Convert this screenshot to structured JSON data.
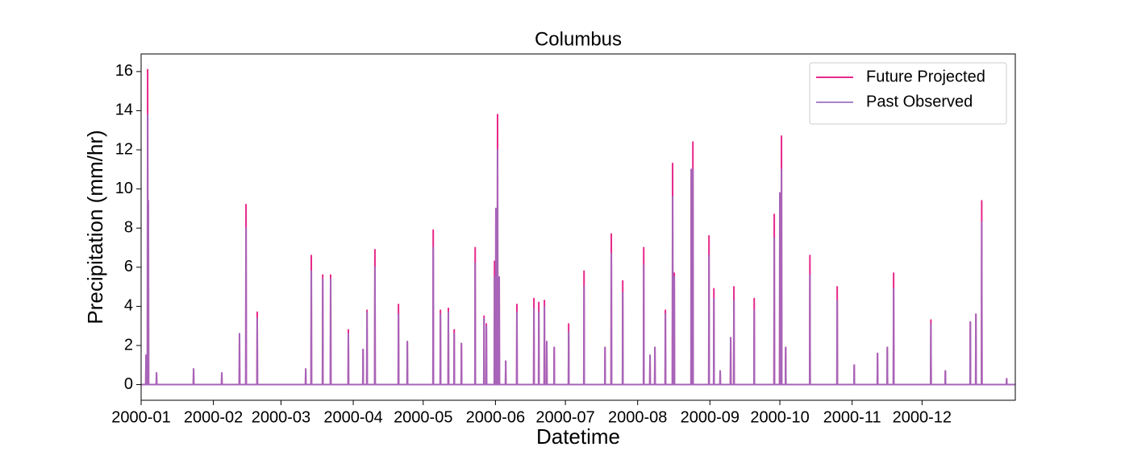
{
  "chart_data": {
    "type": "line",
    "title": "Columbus",
    "x_label": "Datetime",
    "y_label": "Precipitation (mm/hr)",
    "xlim": [
      0,
      375
    ],
    "ylim": [
      -0.8,
      16.9
    ],
    "xticks": [
      {
        "value": 0,
        "label": "2000-01"
      },
      {
        "value": 31,
        "label": "2000-02"
      },
      {
        "value": 60,
        "label": "2000-03"
      },
      {
        "value": 91,
        "label": "2000-04"
      },
      {
        "value": 121,
        "label": "2000-05"
      },
      {
        "value": 152,
        "label": "2000-06"
      },
      {
        "value": 182,
        "label": "2000-07"
      },
      {
        "value": 213,
        "label": "2000-08"
      },
      {
        "value": 244,
        "label": "2000-09"
      },
      {
        "value": 274,
        "label": "2000-10"
      },
      {
        "value": 305,
        "label": "2000-11"
      },
      {
        "value": 335,
        "label": "2000-12"
      }
    ],
    "yticks": [
      0,
      2,
      4,
      6,
      8,
      10,
      12,
      14,
      16
    ],
    "legend": "upper right",
    "x": [
      0,
      2.0,
      2.1,
      2.2,
      2.7,
      2.8,
      2.9,
      3.0,
      3.1,
      3.2,
      6.5,
      6.6,
      6.7,
      22.4,
      22.5,
      22.6,
      34.5,
      34.6,
      34.7,
      42.1,
      42.2,
      42.3,
      44.9,
      45,
      45.1,
      49.7,
      49.8,
      49.9,
      70.5,
      70.6,
      70.7,
      72.9,
      73,
      73.1,
      77.8,
      77.9,
      78,
      81.2,
      81.3,
      81.4,
      88.8,
      88.9,
      89,
      95.1,
      95.2,
      95.3,
      96.8,
      96.9,
      97,
      100.2,
      100.3,
      100.4,
      110.3,
      110.4,
      110.5,
      114.1,
      114.2,
      114.3,
      125.2,
      125.3,
      125.4,
      128.3,
      128.4,
      128.5,
      131.7,
      131.8,
      131.9,
      134.2,
      134.3,
      134.4,
      137.3,
      137.4,
      137.5,
      143.2,
      143.3,
      143.4,
      147,
      147.1,
      147.2,
      148,
      148.1,
      148.2,
      151.5,
      151.6,
      151.7,
      152.1,
      152.2,
      152.3,
      152.8,
      152.9,
      153,
      153.5,
      153.6,
      153.7,
      156.3,
      156.4,
      156.5,
      161.1,
      161.2,
      161.3,
      168.4,
      168.5,
      168.6,
      170.5,
      170.6,
      170.7,
      172.9,
      173,
      173.1,
      173.9,
      174,
      174.1,
      177.1,
      177.2,
      177.3,
      183.3,
      183.4,
      183.5,
      189.9,
      190,
      190.1,
      198.9,
      199,
      199.1,
      201.6,
      201.7,
      201.8,
      206.5,
      206.6,
      206.7,
      215.5,
      215.6,
      215.7,
      218.2,
      218.3,
      218.4,
      220.3,
      220.4,
      220.5,
      224.8,
      224.9,
      225,
      227.9,
      228,
      228.1,
      228.6,
      228.7,
      228.8,
      235.9,
      236,
      236.1,
      236.6,
      236.7,
      236.8,
      243.5,
      243.6,
      243.7,
      245.6,
      245.7,
      245.8,
      248.3,
      248.4,
      248.5,
      252.8,
      252.9,
      253,
      254.2,
      254.3,
      254.4,
      262.9,
      263,
      263.1,
      271.5,
      271.6,
      271.7,
      273.9,
      274,
      274.1,
      274.6,
      274.7,
      274.8,
      276.4,
      276.5,
      276.6,
      286.8,
      286.9,
      287,
      298.5,
      298.6,
      298.7,
      305.8,
      305.9,
      306,
      315.8,
      315.9,
      316,
      320,
      320.1,
      320.2,
      322.7,
      322.8,
      322.9,
      338.7,
      338.8,
      338.9,
      344.9,
      345,
      345.1,
      355.6,
      355.7,
      355.8,
      358,
      358.1,
      358.2,
      360.5,
      360.6,
      360.7,
      371.2,
      371.3,
      371.4,
      375
    ],
    "series": [
      {
        "name": "Future Projected",
        "color": "#e7298a",
        "values": [
          0,
          0,
          1.5,
          0,
          0,
          16.1,
          0,
          0,
          9.4,
          0,
          0,
          0.6,
          0,
          0,
          0.8,
          0,
          0,
          0.6,
          0,
          0,
          2.6,
          0,
          0,
          9.2,
          0,
          0,
          3.7,
          0,
          0,
          0.8,
          0,
          0,
          6.6,
          0,
          0,
          5.6,
          0,
          0,
          5.6,
          0,
          0,
          2.8,
          0,
          0,
          1.8,
          0,
          0,
          3.8,
          0,
          0,
          6.9,
          0,
          0,
          4.1,
          0,
          0,
          2.2,
          0,
          0,
          7.9,
          0,
          0,
          3.8,
          0,
          0,
          3.9,
          0,
          0,
          2.8,
          0,
          0,
          2.1,
          0,
          0,
          7.0,
          0,
          0,
          3.5,
          0,
          0,
          3.1,
          0,
          0,
          6.3,
          0,
          0,
          9.0,
          0,
          0,
          13.8,
          0,
          0,
          5.5,
          0,
          0,
          1.2,
          0,
          0,
          4.1,
          0,
          0,
          4.4,
          0,
          0,
          4.2,
          0,
          0,
          4.3,
          0,
          0,
          2.2,
          0,
          0,
          1.9,
          0,
          0,
          3.1,
          0,
          0,
          5.8,
          0,
          0,
          1.9,
          0,
          0,
          7.7,
          0,
          0,
          5.3,
          0,
          0,
          7.0,
          0,
          0,
          1.5,
          0,
          0,
          1.9,
          0,
          0,
          3.8,
          0,
          0,
          11.3,
          0,
          0,
          5.7,
          0,
          0,
          11.0,
          0,
          0,
          12.4,
          0,
          0,
          7.6,
          0,
          0,
          4.9,
          0,
          0,
          0.7,
          0,
          0,
          2.4,
          0,
          0,
          5.0,
          0,
          0,
          4.4,
          0,
          0,
          8.7,
          0,
          0,
          9.8,
          0,
          0,
          12.7,
          0,
          0,
          1.9,
          0,
          0,
          6.6,
          0,
          0,
          5.0,
          0,
          0,
          1.0,
          0,
          0,
          1.6,
          0,
          0,
          1.9,
          0,
          0,
          5.7,
          0,
          0,
          3.3,
          0,
          0,
          0.7,
          0,
          0,
          3.2,
          0,
          0,
          3.6,
          0,
          0,
          9.4,
          0,
          0,
          0.3,
          0,
          0
        ]
      },
      {
        "name": "Past Observed",
        "color": "#9b6fc0",
        "values": [
          0,
          0,
          1.5,
          0,
          0,
          13.8,
          0,
          0,
          9.4,
          0,
          0,
          0.6,
          0,
          0,
          0.8,
          0,
          0,
          0.6,
          0,
          0,
          2.6,
          0,
          0,
          8.0,
          0,
          0,
          3.4,
          0,
          0,
          0.8,
          0,
          0,
          5.8,
          0,
          0,
          5.4,
          0,
          0,
          5.4,
          0,
          0,
          2.6,
          0,
          0,
          1.8,
          0,
          0,
          3.7,
          0,
          0,
          6.0,
          0,
          0,
          3.6,
          0,
          0,
          2.2,
          0,
          0,
          7.0,
          0,
          0,
          3.6,
          0,
          0,
          3.7,
          0,
          0,
          2.6,
          0,
          0,
          2.1,
          0,
          0,
          6.2,
          0,
          0,
          3.4,
          0,
          0,
          3.0,
          0,
          0,
          5.5,
          0,
          0,
          9.0,
          0,
          0,
          12.0,
          0,
          0,
          5.5,
          0,
          0,
          1.2,
          0,
          0,
          3.7,
          0,
          0,
          3.9,
          0,
          0,
          3.7,
          0,
          0,
          4.0,
          0,
          0,
          2.2,
          0,
          0,
          1.9,
          0,
          0,
          2.7,
          0,
          0,
          5.0,
          0,
          0,
          1.9,
          0,
          0,
          6.7,
          0,
          0,
          4.7,
          0,
          0,
          6.1,
          0,
          0,
          1.5,
          0,
          0,
          1.9,
          0,
          0,
          3.6,
          0,
          0,
          9.6,
          0,
          0,
          5.5,
          0,
          0,
          11.0,
          0,
          0,
          11.0,
          0,
          0,
          6.6,
          0,
          0,
          4.4,
          0,
          0,
          0.7,
          0,
          0,
          2.4,
          0,
          0,
          4.3,
          0,
          0,
          3.8,
          0,
          0,
          7.5,
          0,
          0,
          9.8,
          0,
          0,
          11.0,
          0,
          0,
          1.9,
          0,
          0,
          5.6,
          0,
          0,
          4.3,
          0,
          0,
          1.0,
          0,
          0,
          1.6,
          0,
          0,
          1.9,
          0,
          0,
          4.9,
          0,
          0,
          3.1,
          0,
          0,
          0.7,
          0,
          0,
          3.2,
          0,
          0,
          3.6,
          0,
          0,
          8.3,
          0,
          0,
          0.3,
          0,
          0
        ]
      }
    ]
  }
}
